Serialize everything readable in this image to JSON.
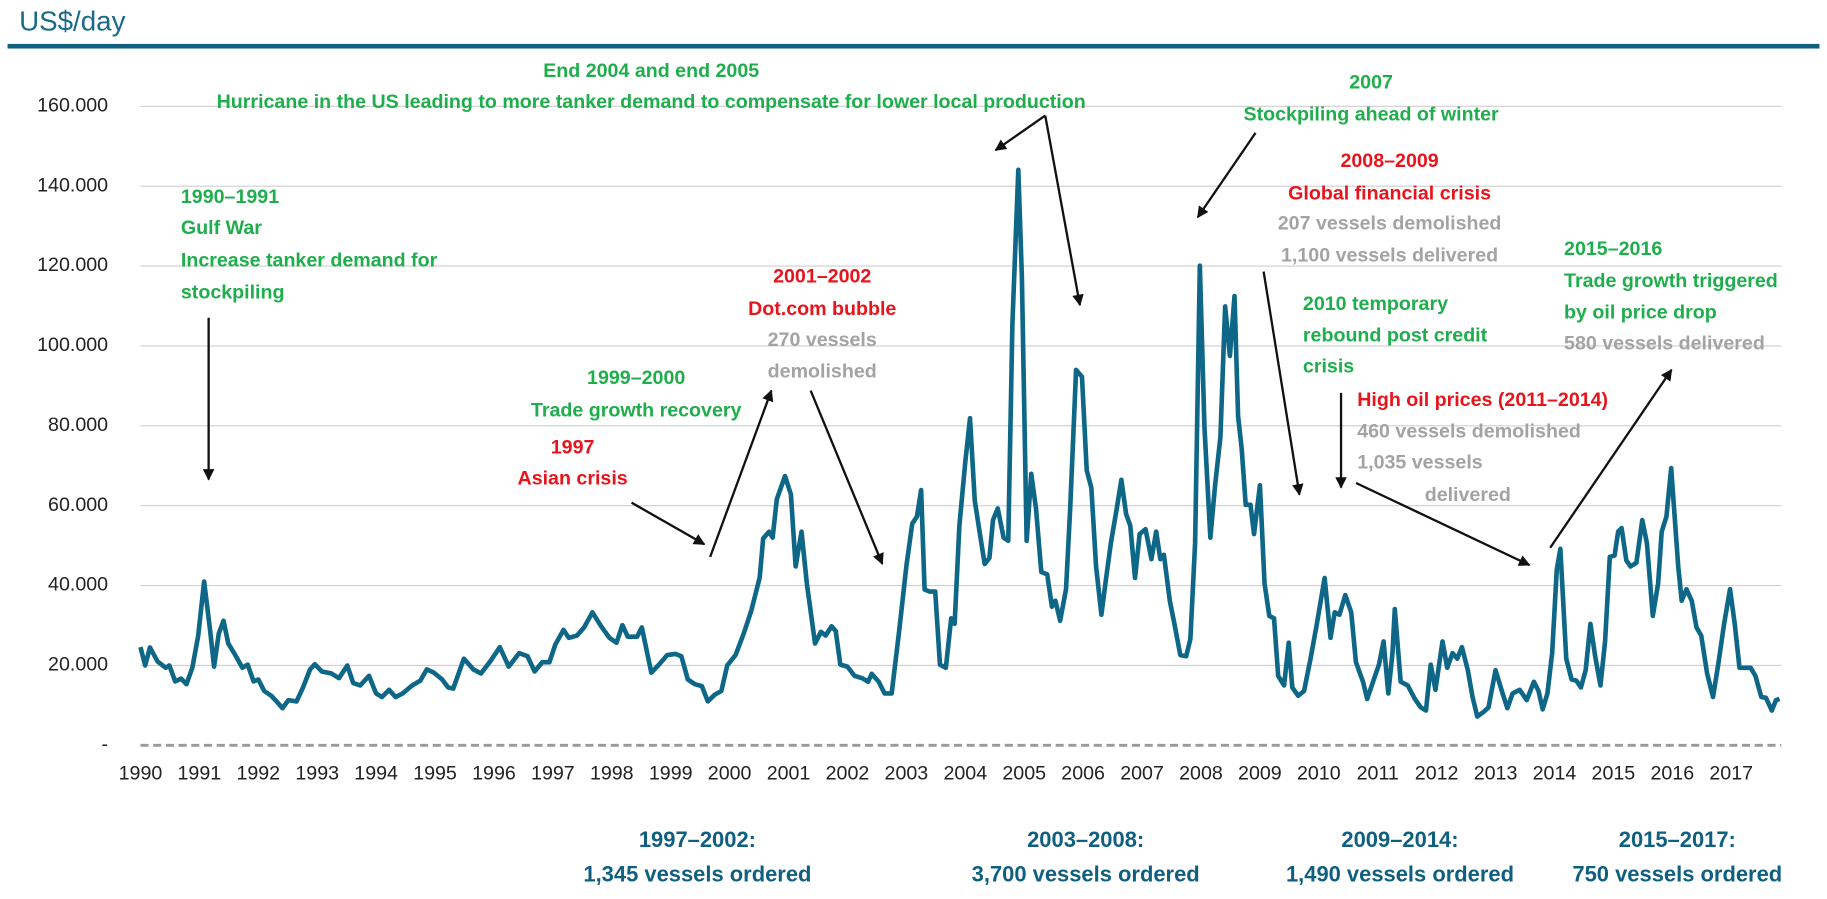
{
  "chart_data": {
    "type": "line",
    "ylabel": "US$/day",
    "color": "#0e6787",
    "grid": true,
    "xlim": [
      1990,
      2017.85
    ],
    "xticks": [
      1990,
      1991,
      1992,
      1993,
      1994,
      1995,
      1996,
      1997,
      1998,
      1999,
      2000,
      2001,
      2002,
      2003,
      2004,
      2005,
      2006,
      2007,
      2008,
      2009,
      2010,
      2011,
      2012,
      2013,
      2014,
      2015,
      2016,
      2017
    ],
    "ylim": [
      0,
      160000
    ],
    "yticks": [
      {
        "value": 0,
        "label": "-"
      },
      {
        "value": 20000,
        "label": "20.000"
      },
      {
        "value": 40000,
        "label": "40.000"
      },
      {
        "value": 60000,
        "label": "60.000"
      },
      {
        "value": 80000,
        "label": "80.000"
      },
      {
        "value": 100000,
        "label": "100.000"
      },
      {
        "value": 120000,
        "label": "120.000"
      },
      {
        "value": 140000,
        "label": "140.000"
      },
      {
        "value": 160000,
        "label": "160.000"
      }
    ],
    "x": [
      1990.0,
      1990.08,
      1990.16,
      1990.29,
      1990.43,
      1990.49,
      1990.59,
      1990.69,
      1990.78,
      1990.88,
      1990.98,
      1991.08,
      1991.18,
      1991.25,
      1991.33,
      1991.41,
      1991.49,
      1991.61,
      1991.73,
      1991.82,
      1991.92,
      1992.0,
      1992.1,
      1992.22,
      1992.31,
      1992.41,
      1992.51,
      1992.65,
      1992.76,
      1992.88,
      1992.96,
      1993.08,
      1993.24,
      1993.37,
      1993.51,
      1993.61,
      1993.73,
      1993.88,
      1994.0,
      1994.1,
      1994.22,
      1994.33,
      1994.45,
      1994.61,
      1994.75,
      1994.86,
      1994.98,
      1995.12,
      1995.22,
      1995.31,
      1995.49,
      1995.65,
      1995.78,
      1995.94,
      1996.1,
      1996.25,
      1996.43,
      1996.57,
      1996.69,
      1996.82,
      1996.94,
      1997.04,
      1997.18,
      1997.27,
      1997.41,
      1997.53,
      1997.67,
      1997.82,
      1997.96,
      1998.08,
      1998.18,
      1998.27,
      1998.43,
      1998.51,
      1998.67,
      1998.8,
      1998.94,
      1999.08,
      1999.18,
      1999.29,
      1999.41,
      1999.53,
      1999.63,
      1999.75,
      1999.86,
      1999.96,
      2000.1,
      2000.24,
      2000.37,
      2000.51,
      2000.57,
      2000.67,
      2000.73,
      2000.8,
      2000.94,
      2001.04,
      2001.12,
      2001.22,
      2001.31,
      2001.45,
      2001.55,
      2001.63,
      2001.73,
      2001.8,
      2001.88,
      2002.0,
      2002.12,
      2002.25,
      2002.35,
      2002.41,
      2002.53,
      2002.63,
      2002.75,
      2002.88,
      2003.0,
      2003.1,
      2003.18,
      2003.25,
      2003.31,
      2003.39,
      2003.49,
      2003.57,
      2003.67,
      2003.76,
      2003.82,
      2003.9,
      2004.0,
      2004.08,
      2004.16,
      2004.25,
      2004.33,
      2004.41,
      2004.47,
      2004.55,
      2004.65,
      2004.73,
      2004.8,
      2004.9,
      2004.96,
      2005.04,
      2005.12,
      2005.2,
      2005.29,
      2005.39,
      2005.47,
      2005.53,
      2005.61,
      2005.71,
      2005.78,
      2005.88,
      2005.98,
      2006.06,
      2006.14,
      2006.22,
      2006.31,
      2006.39,
      2006.47,
      2006.57,
      2006.65,
      2006.73,
      2006.8,
      2006.88,
      2006.96,
      2007.06,
      2007.16,
      2007.24,
      2007.31,
      2007.37,
      2007.47,
      2007.55,
      2007.65,
      2007.75,
      2007.82,
      2007.9,
      2007.98,
      2008.06,
      2008.16,
      2008.24,
      2008.33,
      2008.41,
      2008.49,
      2008.57,
      2008.63,
      2008.69,
      2008.76,
      2008.84,
      2008.9,
      2009.0,
      2009.08,
      2009.16,
      2009.24,
      2009.31,
      2009.41,
      2009.49,
      2009.55,
      2009.65,
      2009.75,
      2009.86,
      2009.96,
      2010.1,
      2010.2,
      2010.27,
      2010.35,
      2010.45,
      2010.55,
      2010.63,
      2010.75,
      2010.82,
      2010.92,
      2011.02,
      2011.1,
      2011.18,
      2011.25,
      2011.29,
      2011.39,
      2011.51,
      2011.63,
      2011.73,
      2011.82,
      2011.9,
      2011.98,
      2012.1,
      2012.18,
      2012.27,
      2012.35,
      2012.43,
      2012.53,
      2012.61,
      2012.69,
      2012.8,
      2012.88,
      2013.0,
      2013.12,
      2013.2,
      2013.29,
      2013.41,
      2013.53,
      2013.65,
      2013.73,
      2013.8,
      2013.88,
      2013.96,
      2014.04,
      2014.1,
      2014.2,
      2014.29,
      2014.37,
      2014.45,
      2014.53,
      2014.61,
      2014.69,
      2014.78,
      2014.86,
      2014.94,
      2015.02,
      2015.08,
      2015.14,
      2015.22,
      2015.29,
      2015.39,
      2015.49,
      2015.57,
      2015.67,
      2015.76,
      2015.82,
      2015.9,
      2015.98,
      2016.1,
      2016.16,
      2016.24,
      2016.33,
      2016.41,
      2016.49,
      2016.59,
      2016.69,
      2016.78,
      2016.88,
      2016.98,
      2017.06,
      2017.14,
      2017.24,
      2017.33,
      2017.41,
      2017.51,
      2017.59,
      2017.69,
      2017.76,
      2017.82
    ],
    "values": [
      24600,
      20000,
      24500,
      21000,
      19400,
      20000,
      16000,
      16700,
      15300,
      19400,
      27500,
      41000,
      29000,
      19700,
      28000,
      31200,
      25500,
      22600,
      19400,
      20200,
      16000,
      16500,
      13600,
      12400,
      11000,
      9300,
      11300,
      11000,
      14500,
      19000,
      20300,
      18500,
      18000,
      16800,
      20000,
      15600,
      15000,
      17400,
      13000,
      12100,
      13900,
      12100,
      13000,
      15000,
      16200,
      19000,
      18200,
      16500,
      14500,
      14200,
      21700,
      19000,
      18000,
      21100,
      24600,
      19700,
      23100,
      22300,
      18500,
      20800,
      20800,
      25200,
      28900,
      26900,
      27500,
      29500,
      33300,
      29800,
      26900,
      25700,
      30100,
      27200,
      27200,
      29500,
      18200,
      20200,
      22600,
      22900,
      22300,
      16500,
      15300,
      14800,
      11000,
      12700,
      13600,
      20000,
      22600,
      28000,
      33800,
      42000,
      51800,
      53500,
      52000,
      61600,
      67400,
      62800,
      44800,
      53500,
      40500,
      25500,
      28400,
      27500,
      29800,
      28600,
      20200,
      19700,
      17400,
      16800,
      15900,
      17900,
      15900,
      13000,
      13000,
      28900,
      44800,
      55500,
      57300,
      63900,
      39000,
      38500,
      38500,
      20200,
      19400,
      31800,
      30400,
      55000,
      70900,
      81900,
      61300,
      52700,
      45400,
      46900,
      56400,
      59300,
      52000,
      51200,
      105600,
      144100,
      117200,
      51200,
      68000,
      59300,
      43400,
      42800,
      34700,
      36200,
      31200,
      39100,
      59300,
      94000,
      92300,
      68900,
      64500,
      44800,
      32700,
      41900,
      50600,
      59300,
      66500,
      57900,
      55000,
      41900,
      52900,
      54100,
      46600,
      53500,
      46600,
      47700,
      36200,
      30400,
      22600,
      22300,
      26600,
      50600,
      120100,
      79600,
      52000,
      65100,
      77200,
      109900,
      97500,
      112500,
      82400,
      74300,
      60200,
      60200,
      52900,
      65100,
      40500,
      32400,
      31800,
      17400,
      15000,
      25700,
      14500,
      12400,
      13600,
      21700,
      29800,
      41900,
      26900,
      33300,
      32700,
      37600,
      33300,
      20800,
      15900,
      11600,
      15900,
      20200,
      26000,
      13000,
      23100,
      34100,
      15900,
      15000,
      11600,
      9500,
      8700,
      20200,
      13900,
      26000,
      19400,
      23100,
      21700,
      24600,
      18800,
      12100,
      7200,
      8400,
      9500,
      18800,
      13000,
      9300,
      13000,
      13900,
      11300,
      15900,
      13600,
      9000,
      13000,
      23100,
      44000,
      49200,
      21700,
      16500,
      16200,
      14500,
      18800,
      30400,
      22300,
      15000,
      26000,
      47200,
      47500,
      53500,
      54400,
      46300,
      44800,
      45700,
      56400,
      50600,
      32400,
      40500,
      53500,
      57300,
      69400,
      44800,
      36200,
      39100,
      36200,
      29500,
      27500,
      18000,
      12100,
      20200,
      30400,
      39100,
      30400,
      19400,
      19400,
      19400,
      17400,
      12100,
      11900,
      8700,
      11300,
      11600
    ],
    "annotations": [
      "End 2004 and end 2005",
      "Hurricane in the US leading to more tanker demand to compensate for lower local production",
      "2007",
      "Stockpiling ahead of winter",
      "2008–2009",
      "Global financial crisis",
      "207 vessels demolished",
      "1,100 vessels delivered",
      "1990–1991",
      "Gulf War",
      "Increase tanker demand for",
      "stockpiling",
      "2001–2002",
      "Dot.com bubble",
      "270 vessels",
      "demolished",
      "1999–2000",
      "Trade growth recovery",
      "1997",
      "Asian crisis",
      "2015–2016",
      "Trade growth triggered",
      "by oil price drop",
      "580 vessels delivered",
      "2010 temporary",
      "rebound post credit",
      "crisis",
      "High oil prices (2011–2014)",
      "460 vessels demolished",
      "1,035 vessels",
      "delivered"
    ],
    "period_notes": [
      "1997–2002:",
      "1,345 vessels ordered",
      "2003–2008:",
      "3,700 vessels ordered",
      "2009–2014:",
      "1,490 vessels ordered",
      "2015–2017:",
      "750 vessels ordered"
    ]
  }
}
